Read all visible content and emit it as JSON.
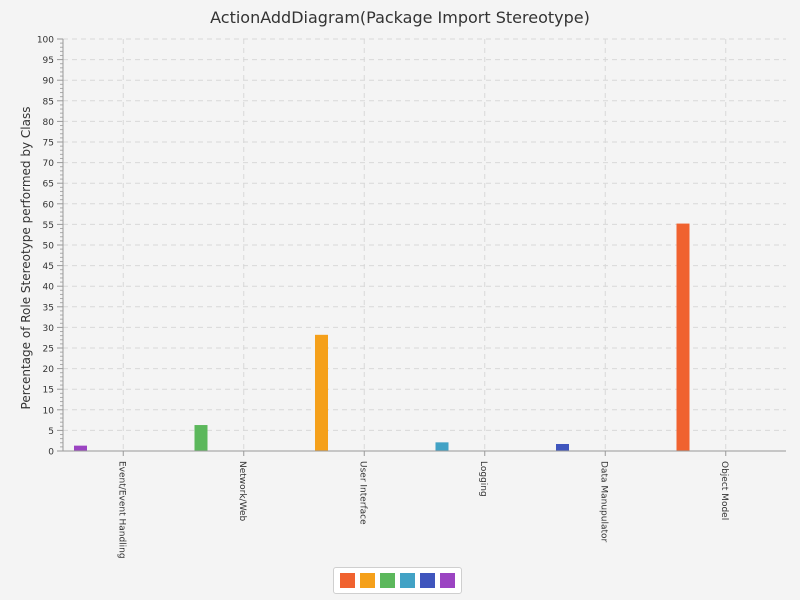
{
  "chart_data": {
    "type": "bar",
    "title": "ActionAddDiagram(Package Import Stereotype)",
    "xlabel": "",
    "ylabel": "Percentage of Role Stereotype performed by Class",
    "ylim": [
      0,
      100
    ],
    "y_ticks": [
      "0",
      "5",
      "10",
      "15",
      "20",
      "25",
      "30",
      "35",
      "40",
      "45",
      "50",
      "55",
      "60",
      "65",
      "70",
      "75",
      "80",
      "85",
      "90",
      "95",
      "100"
    ],
    "grid": true,
    "legend_position": "bottom",
    "categories": [
      "Event/Event Handling",
      "Network/Web",
      "User Interface",
      "Logging",
      "Data Manupulator",
      "Object Model"
    ],
    "series": [
      {
        "color": "#f0622f",
        "values": [
          0,
          0,
          0,
          0,
          0,
          55.2
        ]
      },
      {
        "color": "#f5a01a",
        "values": [
          0,
          0,
          28.2,
          0,
          0,
          0
        ]
      },
      {
        "color": "#5cb85c",
        "values": [
          0,
          6.3,
          0,
          0,
          0,
          0
        ]
      },
      {
        "color": "#42a2c5",
        "values": [
          0,
          0,
          0,
          2.1,
          0,
          0
        ]
      },
      {
        "color": "#3f55bd",
        "values": [
          0,
          0,
          0,
          0,
          1.7,
          0
        ]
      },
      {
        "color": "#9b44c2",
        "values": [
          1.3,
          0,
          0,
          0,
          0,
          0
        ]
      }
    ]
  }
}
